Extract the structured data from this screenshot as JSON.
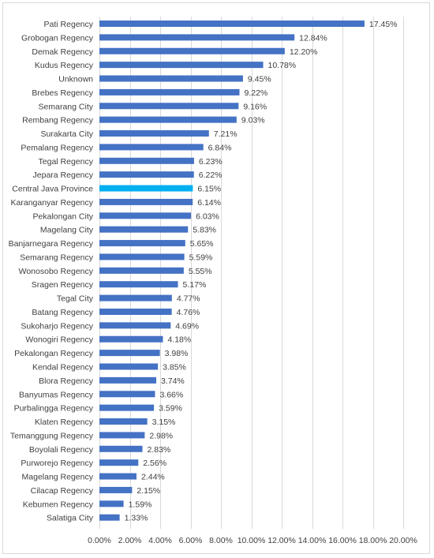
{
  "chart_data": {
    "type": "bar",
    "orientation": "horizontal",
    "categories": [
      "Pati Regency",
      "Grobogan Regency",
      "Demak Regency",
      "Kudus Regency",
      "Unknown",
      "Brebes Regency",
      "Semarang City",
      "Rembang Regency",
      "Surakarta City",
      "Pemalang Regency",
      "Tegal Regency",
      "Jepara Regency",
      "Central Java Province",
      "Karanganyar Regency",
      "Pekalongan City",
      "Magelang City",
      "Banjarnegara Regency",
      "Semarang Regency",
      "Wonosobo Regency",
      "Sragen Regency",
      "Tegal City",
      "Batang Regency",
      "Sukoharjo Regency",
      "Wonogiri Regency",
      "Pekalongan Regency",
      "Kendal Regency",
      "Blora Regency",
      "Banyumas Regency",
      "Purbalingga Regency",
      "Klaten Regency",
      "Temanggung Regency",
      "Boyolali Regency",
      "Purworejo Regency",
      "Magelang Regency",
      "Cilacap Regency",
      "Kebumen Regency",
      "Salatiga City"
    ],
    "values": [
      17.45,
      12.84,
      12.2,
      10.78,
      9.45,
      9.22,
      9.16,
      9.03,
      7.21,
      6.84,
      6.23,
      6.22,
      6.15,
      6.14,
      6.03,
      5.83,
      5.65,
      5.59,
      5.55,
      5.17,
      4.77,
      4.76,
      4.69,
      4.18,
      3.98,
      3.85,
      3.74,
      3.66,
      3.59,
      3.15,
      2.98,
      2.83,
      2.56,
      2.44,
      2.15,
      1.59,
      1.33
    ],
    "value_labels": [
      "17.45%",
      "12.84%",
      "12.20%",
      "10.78%",
      "9.45%",
      "9.22%",
      "9.16%",
      "9.03%",
      "7.21%",
      "6.84%",
      "6.23%",
      "6.22%",
      "6.15%",
      "6.14%",
      "6.03%",
      "5.83%",
      "5.65%",
      "5.59%",
      "5.55%",
      "5.17%",
      "4.77%",
      "4.76%",
      "4.69%",
      "4.18%",
      "3.98%",
      "3.85%",
      "3.74%",
      "3.66%",
      "3.59%",
      "3.15%",
      "2.98%",
      "2.83%",
      "2.56%",
      "2.44%",
      "2.15%",
      "1.59%",
      "1.33%"
    ],
    "highlight_category": "Central Java Province",
    "colors": {
      "bar": "#4472c4",
      "highlight": "#00b0f0",
      "grid": "#d9d9d9",
      "text": "#404040"
    },
    "x_ticks": [
      0,
      2,
      4,
      6,
      8,
      10,
      12,
      14,
      16,
      18,
      20
    ],
    "x_tick_labels": [
      "0.00%",
      "2.00%",
      "4.00%",
      "6.00%",
      "8.00%",
      "10.00%",
      "12.00%",
      "14.00%",
      "16.00%",
      "18.00%",
      "20.00%"
    ],
    "xlim": [
      0,
      20
    ],
    "title": "",
    "xlabel": "",
    "ylabel": "",
    "grid": "vertical",
    "legend": "none"
  }
}
